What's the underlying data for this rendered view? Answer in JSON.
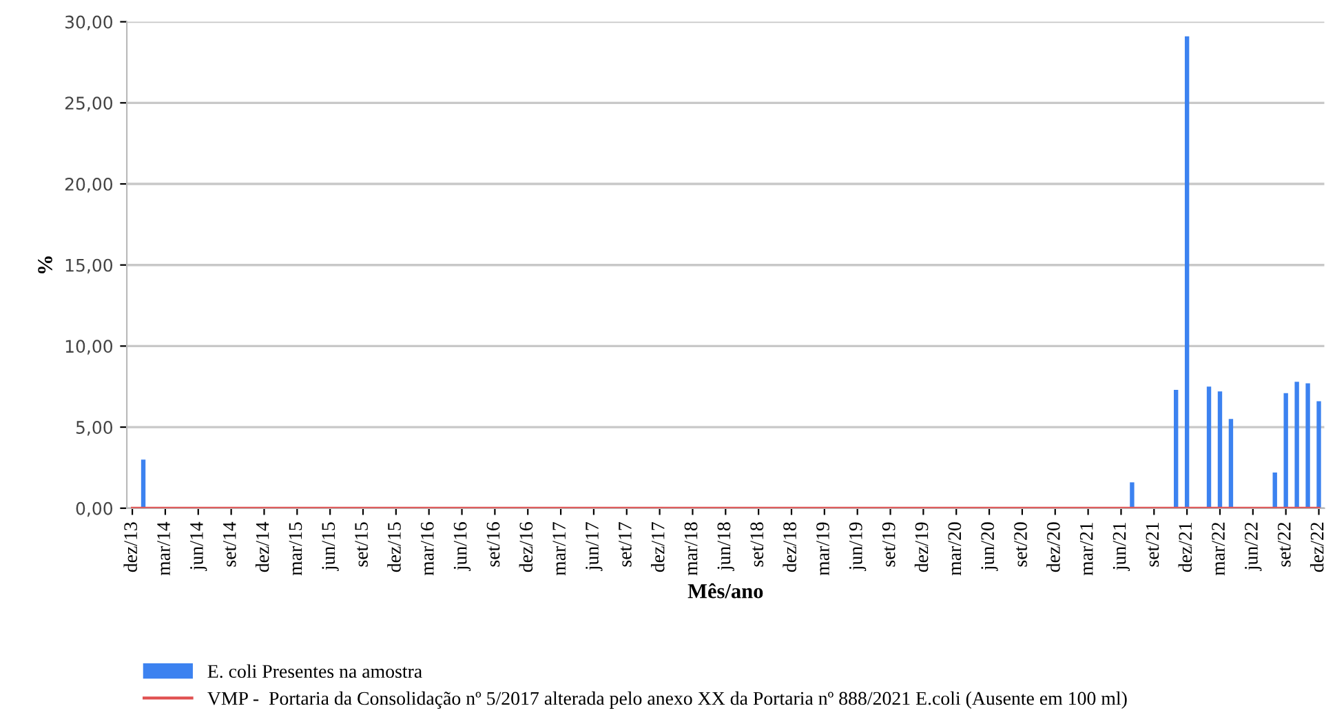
{
  "chart_data": {
    "type": "bar",
    "xlabel": "Mês/ano",
    "ylabel": "%",
    "categories": [
      "dez/13",
      null,
      null,
      "mar/14",
      null,
      null,
      "jun/14",
      null,
      null,
      "set/14",
      null,
      null,
      "dez/14",
      null,
      null,
      "mar/15",
      null,
      null,
      "jun/15",
      null,
      null,
      "set/15",
      null,
      null,
      "dez/15",
      null,
      null,
      "mar/16",
      null,
      null,
      "jun/16",
      null,
      null,
      "set/16",
      null,
      null,
      "dez/16",
      null,
      null,
      "mar/17",
      null,
      null,
      "jun/17",
      null,
      null,
      "set/17",
      null,
      null,
      "dez/17",
      null,
      null,
      "mar/18",
      null,
      null,
      "jun/18",
      null,
      null,
      "set/18",
      null,
      null,
      "dez/18",
      null,
      null,
      "mar/19",
      null,
      null,
      "jun/19",
      null,
      null,
      "set/19",
      null,
      null,
      "dez/19",
      null,
      null,
      "mar/20",
      null,
      null,
      "jun/20",
      null,
      null,
      "set/20",
      null,
      null,
      "dez/20",
      null,
      null,
      "mar/21",
      null,
      null,
      "jun/21",
      null,
      null,
      "set/21",
      null,
      null,
      "dez/21",
      null,
      null,
      "mar/22",
      null,
      null,
      "jun/22",
      null,
      null,
      "set/22",
      null,
      null,
      "dez/22"
    ],
    "series": [
      {
        "name": "E. coli Presentes na amostra",
        "color": "#3c82f0",
        "values": [
          0,
          3.0,
          0,
          0,
          0,
          0,
          0,
          0,
          0,
          0,
          0,
          0,
          0,
          0,
          0,
          0,
          0,
          0,
          0,
          0,
          0,
          0,
          0,
          0,
          0,
          0,
          0,
          0,
          0,
          0,
          0,
          0,
          0,
          0,
          0,
          0,
          0,
          0,
          0,
          0,
          0,
          0,
          0,
          0,
          0,
          0,
          0,
          0,
          0,
          0,
          0,
          0,
          0,
          0,
          0,
          0,
          0,
          0,
          0,
          0,
          0,
          0,
          0,
          0,
          0,
          0,
          0,
          0,
          0,
          0,
          0,
          0,
          0,
          0,
          0,
          0,
          0,
          0,
          0,
          0,
          0,
          0,
          0,
          0,
          0,
          0,
          0,
          0,
          0,
          0,
          0,
          1.6,
          0,
          0,
          0,
          7.3,
          29.1,
          0,
          7.5,
          7.2,
          5.5,
          0,
          0,
          0,
          2.2,
          7.1,
          7.8,
          7.7,
          6.6
        ]
      },
      {
        "name": "VMP -  Portaria da Consolidação nº 5/2017 alterada pelo anexo XX da Portaria nº 888/2021 E.coli (Ausente em 100 ml)",
        "type": "line",
        "color": "#e05050",
        "values": [
          0,
          0,
          0,
          0,
          0,
          0,
          0,
          0,
          0,
          0,
          0,
          0,
          0,
          0,
          0,
          0,
          0,
          0,
          0,
          0,
          0,
          0,
          0,
          0,
          0,
          0,
          0,
          0,
          0,
          0,
          0,
          0,
          0,
          0,
          0,
          0,
          0,
          0,
          0,
          0,
          0,
          0,
          0,
          0,
          0,
          0,
          0,
          0,
          0,
          0,
          0,
          0,
          0,
          0,
          0,
          0,
          0,
          0,
          0,
          0,
          0,
          0,
          0,
          0,
          0,
          0,
          0,
          0,
          0,
          0,
          0,
          0,
          0,
          0,
          0,
          0,
          0,
          0,
          0,
          0,
          0,
          0,
          0,
          0,
          0,
          0,
          0,
          0,
          0,
          0,
          0,
          0,
          0,
          0,
          0,
          0,
          0,
          0,
          0,
          0,
          0,
          0,
          0,
          0,
          0,
          0,
          0,
          0,
          0
        ]
      }
    ],
    "ylim": [
      0,
      30
    ],
    "yticks": [
      {
        "value": 0,
        "label": "0,00"
      },
      {
        "value": 5,
        "label": "5,00"
      },
      {
        "value": 10,
        "label": "10,00"
      },
      {
        "value": 15,
        "label": "15,00"
      },
      {
        "value": 20,
        "label": "20,00"
      },
      {
        "value": 25,
        "label": "25,00"
      },
      {
        "value": 30,
        "label": "30,00"
      }
    ],
    "grid": "y",
    "legend": "bottom"
  }
}
